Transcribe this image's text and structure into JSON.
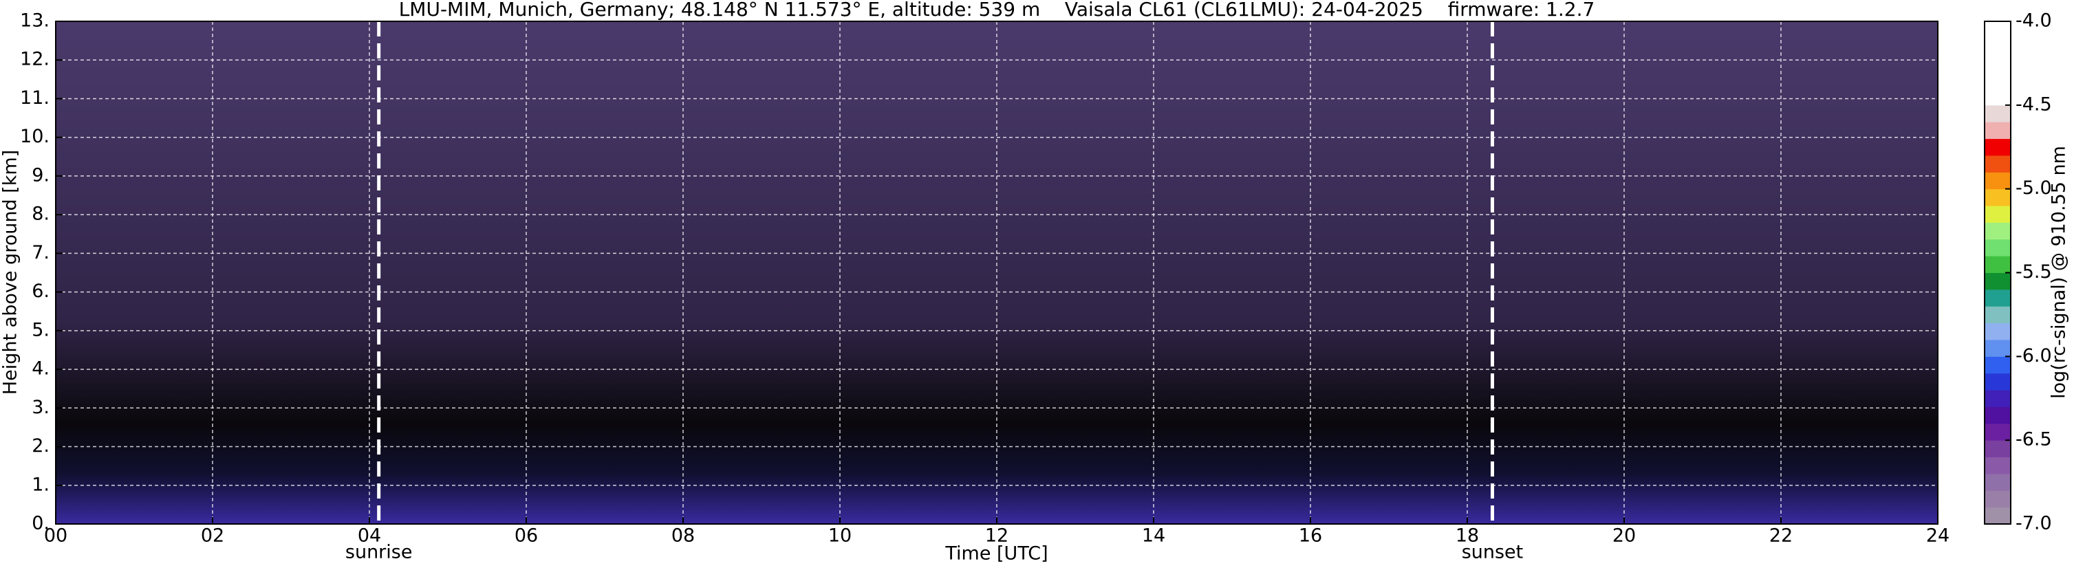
{
  "chart_data": {
    "type": "heatmap",
    "title": "LMU-MIM, Munich, Germany; 48.148° N 11.573° E, altitude: 539 m    Vaisala CL61 (CL61LMU): 24-04-2025    firmware: 1.2.7",
    "xlabel": "Time [UTC]",
    "ylabel": "Height above ground [km]",
    "xlim": [
      0,
      24
    ],
    "xticks": [
      {
        "value": 0,
        "label": "00"
      },
      {
        "value": 2,
        "label": "02"
      },
      {
        "value": 4,
        "label": "04"
      },
      {
        "value": 6,
        "label": "06"
      },
      {
        "value": 8,
        "label": "08"
      },
      {
        "value": 10,
        "label": "10"
      },
      {
        "value": 12,
        "label": "12"
      },
      {
        "value": 14,
        "label": "14"
      },
      {
        "value": 16,
        "label": "16"
      },
      {
        "value": 18,
        "label": "18"
      },
      {
        "value": 20,
        "label": "20"
      },
      {
        "value": 22,
        "label": "22"
      },
      {
        "value": 24,
        "label": "24"
      }
    ],
    "ylim": [
      0,
      13
    ],
    "yticks": [
      {
        "value": 0,
        "label": "0."
      },
      {
        "value": 1,
        "label": "1."
      },
      {
        "value": 2,
        "label": "2."
      },
      {
        "value": 3,
        "label": "3."
      },
      {
        "value": 4,
        "label": "4."
      },
      {
        "value": 5,
        "label": "5."
      },
      {
        "value": 6,
        "label": "6."
      },
      {
        "value": 7,
        "label": "7."
      },
      {
        "value": 8,
        "label": "8."
      },
      {
        "value": 9,
        "label": "9."
      },
      {
        "value": 10,
        "label": "10."
      },
      {
        "value": 11,
        "label": "11."
      },
      {
        "value": 12,
        "label": "12."
      },
      {
        "value": 13,
        "label": "13."
      }
    ],
    "grid": true,
    "colorbar": {
      "label": "log(rc-signal) @ 910.55 nm",
      "clim": [
        -7,
        -4
      ],
      "ticks": [
        {
          "value": -4,
          "label": "-4.0"
        },
        {
          "value": -4.5,
          "label": "-4.5"
        },
        {
          "value": -5,
          "label": "-5.0"
        },
        {
          "value": -5.5,
          "label": "-5.5"
        },
        {
          "value": -6,
          "label": "-6.0"
        },
        {
          "value": -6.5,
          "label": "-6.5"
        },
        {
          "value": -7,
          "label": "-7.0"
        }
      ],
      "colors": [
        "#a090a8",
        "#9a80a8",
        "#9070a8",
        "#8a5aa8",
        "#7a40a0",
        "#6a20a0",
        "#5010a0",
        "#4020b8",
        "#2838d8",
        "#3060f0",
        "#6090f0",
        "#90b0f0",
        "#80c0c0",
        "#20a090",
        "#109030",
        "#40c040",
        "#70e070",
        "#a0f080",
        "#e0f040",
        "#f8c020",
        "#f89010",
        "#f05010",
        "#f00000",
        "#f0b0b0",
        "#e8d8d8",
        "#ffffff",
        "#ffffff",
        "#ffffff",
        "#ffffff",
        "#ffffff"
      ]
    },
    "annotations": [
      {
        "label": "sunrise",
        "x": 4.12
      },
      {
        "label": "sunset",
        "x": 18.32
      }
    ]
  }
}
